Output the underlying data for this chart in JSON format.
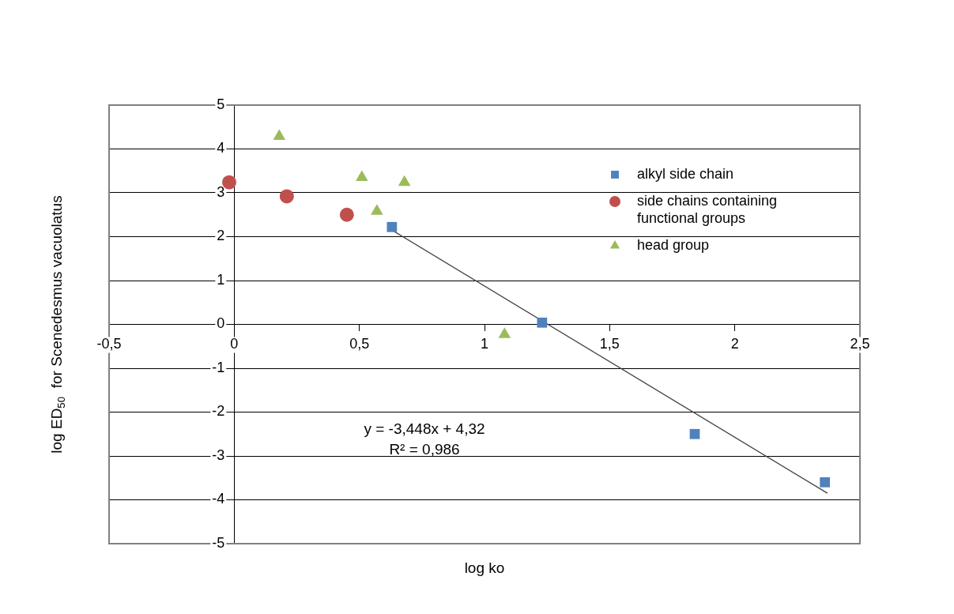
{
  "chart_data": {
    "type": "scatter",
    "xlabel": "log ko",
    "ylabel": "log ED$_{50}$  for Scenedesmus vacuolatus",
    "xlim": [
      -0.5,
      2.5
    ],
    "ylim": [
      -5,
      5
    ],
    "xticks": [
      {
        "value": -0.5,
        "label": "-0,5"
      },
      0,
      {
        "value": 0.5,
        "label": "0,5"
      },
      1,
      {
        "value": 1.5,
        "label": "1,5"
      },
      2,
      {
        "value": 2.5,
        "label": "2,5"
      }
    ],
    "yticks": [
      -5,
      -4,
      -3,
      -2,
      -1,
      0,
      1,
      2,
      3,
      4,
      5
    ],
    "grid": "y",
    "legend": "top right",
    "annotations": [
      "y = -3,448x + 4,32",
      "R² = 0,986"
    ],
    "series": [
      {
        "name": "alkyl side chain",
        "color": "#4f81bd",
        "marker": "square",
        "x": [
          0.63,
          1.23,
          1.84,
          2.36
        ],
        "values": [
          2.22,
          0.04,
          -2.5,
          -3.6
        ]
      },
      {
        "name": "side chains containing functional groups",
        "color": "#c0504d",
        "marker": "circle",
        "x": [
          -0.02,
          0.21,
          0.45
        ],
        "values": [
          3.24,
          2.92,
          2.5
        ]
      },
      {
        "name": "head group",
        "color": "#9bbb59",
        "marker": "triangle",
        "x": [
          0.18,
          0.51,
          0.57,
          0.68,
          1.08
        ],
        "values": [
          4.29,
          3.35,
          2.58,
          3.24,
          -0.23
        ]
      },
      {
        "type": "line",
        "color": "#404040",
        "marker": "none",
        "x": [
          0.63,
          2.37
        ],
        "values": [
          2.15,
          -3.85
        ]
      }
    ]
  }
}
